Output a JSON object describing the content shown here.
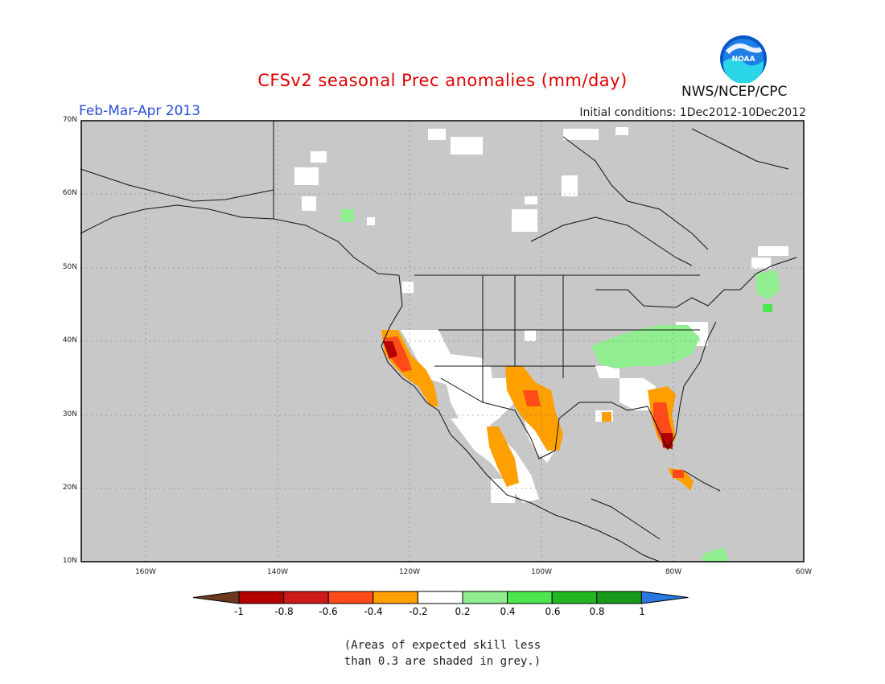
{
  "title": "CFSv2 seasonal Prec anomalies (mm/day)",
  "season": "Feb-Mar-Apr 2013",
  "initial_conditions": "Initial conditions: 1Dec2012-10Dec2012",
  "agency": "NWS/NCEP/CPC",
  "logo_text": "NOAA",
  "lat_labels": [
    "70N",
    "60N",
    "50N",
    "40N",
    "30N",
    "20N",
    "10N"
  ],
  "lon_labels": [
    "160W",
    "140W",
    "120W",
    "100W",
    "80W",
    "60W"
  ],
  "colorbar": {
    "labels": [
      "-1",
      "-0.8",
      "-0.6",
      "-0.4",
      "-0.2",
      "0.2",
      "0.4",
      "0.6",
      "0.8",
      "1"
    ],
    "colors": [
      "#6b3a1e",
      "#b30000",
      "#cc1a1a",
      "#ff4a1a",
      "#ff9f00",
      "#ffffff",
      "#90ee90",
      "#4ee64e",
      "#22b722",
      "#1a9a1a",
      "#2878e0"
    ]
  },
  "note_line1": "(Areas of expected skill less",
  "note_line2": "than 0.3 are shaded in grey.)",
  "colors": {
    "land_no_skill": "#c8c8c8",
    "title": "#e00000",
    "season": "#2a4fd8"
  }
}
